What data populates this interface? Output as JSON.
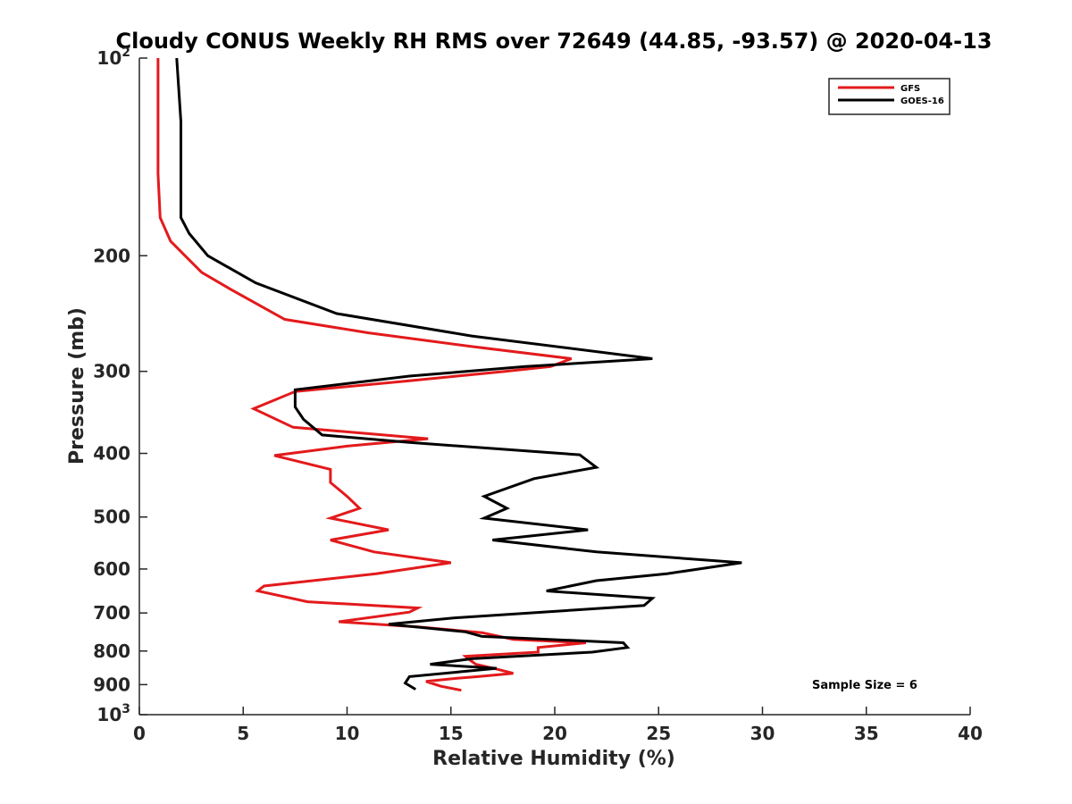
{
  "chart_data": {
    "type": "line",
    "title": "Cloudy CONUS Weekly RH RMS over 72649 (44.85, -93.57) @ 2020-04-13",
    "xlabel": "Relative Humidity (%)",
    "ylabel": "Pressure (mb)",
    "xlim": [
      0,
      40
    ],
    "ylim": [
      100,
      1000
    ],
    "yscale": "log",
    "y_reversed": true,
    "grid": false,
    "legend_position": "top-right",
    "x_ticks": [
      0,
      5,
      10,
      15,
      20,
      25,
      30,
      35,
      40
    ],
    "x_tick_labels": [
      "0",
      "5",
      "10",
      "15",
      "20",
      "25",
      "30",
      "35",
      "40"
    ],
    "y_ticks": [
      100,
      200,
      300,
      400,
      500,
      600,
      700,
      800,
      900,
      1000
    ],
    "y_tick_labels": [
      {
        "base": "10",
        "sup": "2"
      },
      {
        "base": "200",
        "sup": ""
      },
      {
        "base": "300",
        "sup": ""
      },
      {
        "base": "400",
        "sup": ""
      },
      {
        "base": "500",
        "sup": ""
      },
      {
        "base": "600",
        "sup": ""
      },
      {
        "base": "700",
        "sup": ""
      },
      {
        "base": "800",
        "sup": ""
      },
      {
        "base": "900",
        "sup": ""
      },
      {
        "base": "10",
        "sup": "3"
      }
    ],
    "annotation": "Sample Size = 6",
    "series": [
      {
        "name": "GFS",
        "color": "#e31a1c",
        "points": [
          [
            0.9,
            100
          ],
          [
            0.9,
            125
          ],
          [
            0.9,
            150
          ],
          [
            1.0,
            175
          ],
          [
            1.5,
            190
          ],
          [
            2.2,
            200
          ],
          [
            3.0,
            212
          ],
          [
            4.4,
            225
          ],
          [
            7.0,
            250
          ],
          [
            11.0,
            262
          ],
          [
            16.0,
            275
          ],
          [
            20.8,
            287
          ],
          [
            19.8,
            295
          ],
          [
            17.6,
            300
          ],
          [
            13.0,
            310
          ],
          [
            7.5,
            322
          ],
          [
            5.5,
            342
          ],
          [
            7.4,
            365
          ],
          [
            13.9,
            380
          ],
          [
            10.0,
            390
          ],
          [
            6.5,
            403
          ],
          [
            9.2,
            423
          ],
          [
            9.2,
            443
          ],
          [
            10.0,
            465
          ],
          [
            10.6,
            485
          ],
          [
            9.2,
            502
          ],
          [
            12.0,
            523
          ],
          [
            9.2,
            542
          ],
          [
            11.3,
            565
          ],
          [
            15.0,
            587
          ],
          [
            11.4,
            610
          ],
          [
            6.0,
            637
          ],
          [
            5.7,
            648
          ],
          [
            8.1,
            673
          ],
          [
            13.4,
            688
          ],
          [
            13.0,
            698
          ],
          [
            9.6,
            722
          ],
          [
            13.4,
            735
          ],
          [
            16.5,
            750
          ],
          [
            18.0,
            768
          ],
          [
            21.5,
            777
          ],
          [
            19.2,
            790
          ],
          [
            19.2,
            803
          ],
          [
            15.7,
            815
          ],
          [
            15.9,
            825
          ],
          [
            16.2,
            838
          ],
          [
            17.2,
            852
          ],
          [
            18.0,
            865
          ],
          [
            16.3,
            875
          ],
          [
            15.3,
            880
          ],
          [
            13.8,
            890
          ],
          [
            14.5,
            905
          ],
          [
            15.5,
            918
          ]
        ]
      },
      {
        "name": "GOES-16",
        "color": "#000000",
        "points": [
          [
            1.8,
            100
          ],
          [
            2.0,
            125
          ],
          [
            2.0,
            150
          ],
          [
            2.0,
            175
          ],
          [
            2.4,
            185
          ],
          [
            3.3,
            200
          ],
          [
            5.6,
            220
          ],
          [
            9.5,
            245
          ],
          [
            16.0,
            265
          ],
          [
            24.7,
            287
          ],
          [
            18.6,
            295
          ],
          [
            13.0,
            305
          ],
          [
            7.5,
            320
          ],
          [
            7.5,
            340
          ],
          [
            7.9,
            355
          ],
          [
            8.8,
            375
          ],
          [
            13.0,
            385
          ],
          [
            21.2,
            402
          ],
          [
            22.0,
            420
          ],
          [
            19.0,
            437
          ],
          [
            16.6,
            465
          ],
          [
            17.7,
            485
          ],
          [
            16.6,
            502
          ],
          [
            21.6,
            523
          ],
          [
            17.0,
            542
          ],
          [
            22.0,
            565
          ],
          [
            29.0,
            587
          ],
          [
            25.4,
            610
          ],
          [
            22.0,
            625
          ],
          [
            19.6,
            648
          ],
          [
            24.7,
            665
          ],
          [
            24.3,
            682
          ],
          [
            15.2,
            712
          ],
          [
            12.0,
            728
          ],
          [
            15.7,
            748
          ],
          [
            16.5,
            760
          ],
          [
            23.3,
            777
          ],
          [
            23.5,
            790
          ],
          [
            21.8,
            803
          ],
          [
            16.0,
            822
          ],
          [
            14.0,
            838
          ],
          [
            17.2,
            850
          ],
          [
            15.5,
            860
          ],
          [
            13.0,
            875
          ],
          [
            12.8,
            895
          ],
          [
            13.3,
            915
          ]
        ]
      }
    ]
  }
}
